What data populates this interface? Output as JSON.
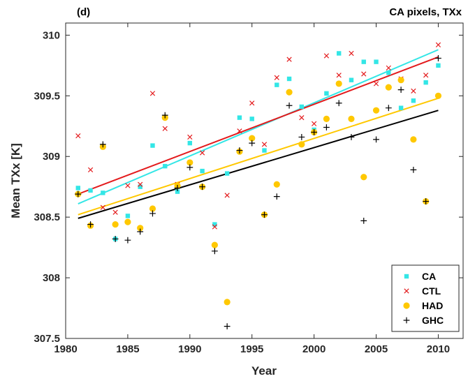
{
  "chart_data": {
    "type": "scatter",
    "panel_label": "(d)",
    "title": "CA pixels, TXx",
    "xlabel": "Year",
    "ylabel": "Mean TXx [K]",
    "xlim": [
      1980,
      2012
    ],
    "ylim": [
      307.5,
      310.1
    ],
    "xticks": [
      1980,
      1985,
      1990,
      1995,
      2000,
      2005,
      2010
    ],
    "yticks": [
      307.5,
      308,
      308.5,
      309,
      309.5,
      310
    ],
    "xtick_labels": [
      "1980",
      "1985",
      "1990",
      "1995",
      "2000",
      "2005",
      "2010"
    ],
    "ytick_labels": [
      "307.5",
      "308",
      "308.5",
      "309",
      "309.5",
      "310"
    ],
    "legend_position": "bottom-right",
    "grid": false,
    "series": [
      {
        "name": "CA",
        "color": "#33e6e6",
        "marker": "square",
        "x": [
          1981,
          1982,
          1983,
          1984,
          1985,
          1986,
          1987,
          1988,
          1989,
          1990,
          1991,
          1992,
          1993,
          1994,
          1995,
          1996,
          1997,
          1998,
          1999,
          2000,
          2001,
          2002,
          2003,
          2004,
          2005,
          2006,
          2007,
          2008,
          2009,
          2010
        ],
        "y": [
          308.74,
          308.72,
          308.7,
          308.32,
          308.51,
          308.75,
          309.09,
          308.92,
          308.71,
          309.11,
          308.88,
          308.44,
          308.86,
          309.32,
          309.31,
          309.05,
          309.59,
          309.64,
          309.41,
          309.22,
          309.52,
          309.85,
          309.63,
          309.78,
          309.78,
          309.69,
          309.4,
          309.46,
          309.61,
          309.75
        ],
        "trend": [
          308.61,
          309.88
        ]
      },
      {
        "name": "CTL",
        "color": "#e31a1c",
        "marker": "x",
        "x": [
          1981,
          1982,
          1983,
          1984,
          1985,
          1986,
          1987,
          1988,
          1989,
          1990,
          1991,
          1992,
          1993,
          1994,
          1995,
          1996,
          1997,
          1998,
          1999,
          2000,
          2001,
          2002,
          2003,
          2004,
          2005,
          2006,
          2007,
          2008,
          2009,
          2010
        ],
        "y": [
          309.17,
          308.89,
          308.58,
          308.54,
          308.76,
          308.77,
          309.52,
          309.23,
          308.77,
          309.16,
          309.03,
          308.42,
          308.68,
          309.21,
          309.44,
          309.1,
          309.65,
          309.8,
          309.32,
          309.27,
          309.83,
          309.67,
          309.85,
          309.68,
          309.6,
          309.73,
          309.64,
          309.54,
          309.67,
          309.92
        ],
        "trend": [
          308.69,
          309.82
        ]
      },
      {
        "name": "HAD",
        "color": "#ffc800",
        "marker": "circle",
        "x": [
          1981,
          1982,
          1983,
          1984,
          1985,
          1986,
          1987,
          1988,
          1989,
          1990,
          1991,
          1992,
          1993,
          1994,
          1995,
          1996,
          1997,
          1998,
          1999,
          2000,
          2001,
          2002,
          2003,
          2004,
          2005,
          2006,
          2007,
          2008,
          2009,
          2010
        ],
        "y": [
          308.69,
          308.43,
          309.08,
          308.44,
          308.46,
          308.41,
          308.57,
          309.32,
          308.76,
          308.95,
          308.75,
          308.27,
          307.8,
          309.04,
          309.15,
          308.52,
          308.77,
          309.53,
          309.1,
          309.2,
          309.31,
          309.6,
          309.31,
          308.83,
          309.38,
          309.57,
          309.63,
          309.14,
          308.63,
          309.5
        ],
        "trend": [
          308.52,
          309.48
        ]
      },
      {
        "name": "GHC",
        "color": "#000000",
        "marker": "plus",
        "x": [
          1981,
          1982,
          1983,
          1984,
          1985,
          1986,
          1987,
          1988,
          1989,
          1990,
          1991,
          1992,
          1993,
          1994,
          1995,
          1996,
          1997,
          1998,
          1999,
          2000,
          2001,
          2002,
          2003,
          2004,
          2005,
          2006,
          2007,
          2008,
          2009,
          2010
        ],
        "y": [
          308.69,
          308.44,
          309.1,
          308.32,
          308.31,
          308.38,
          308.53,
          309.34,
          308.74,
          308.91,
          308.75,
          308.22,
          307.6,
          309.05,
          309.11,
          308.52,
          308.67,
          309.42,
          309.16,
          309.2,
          309.24,
          309.44,
          309.16,
          308.47,
          309.14,
          309.4,
          309.55,
          308.89,
          308.63,
          309.81
        ],
        "trend": [
          308.49,
          309.38
        ]
      }
    ]
  }
}
